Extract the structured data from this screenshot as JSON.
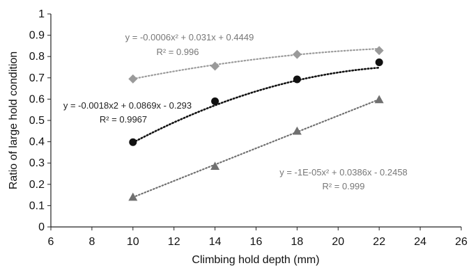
{
  "chart_data": {
    "type": "scatter",
    "xlabel": "Climbing hold depth (mm)",
    "ylabel": "Ratio of large hold condition",
    "xlim": [
      6,
      26
    ],
    "ylim": [
      0,
      1
    ],
    "xticks": [
      6,
      8,
      10,
      12,
      14,
      16,
      18,
      20,
      22,
      24,
      26
    ],
    "xtick_labels": [
      "6",
      "8",
      "10",
      "12",
      "14",
      "16",
      "18",
      "20",
      "22",
      "24",
      "26"
    ],
    "yticks": [
      0,
      0.1,
      0.2,
      0.3,
      0.4,
      0.5,
      0.6,
      0.7,
      0.8,
      0.9,
      1
    ],
    "ytick_labels": [
      "0",
      "0.1",
      "0.2",
      "0.3",
      "0.4",
      "0.5",
      "0.6",
      "0.7",
      "0.8",
      "0.9",
      "1"
    ],
    "grid": false,
    "trendline": "dotted polynomial",
    "series": [
      {
        "marker": "diamond",
        "color": "#9a9a9a",
        "x": [
          10,
          14,
          18,
          22
        ],
        "y": [
          0.695,
          0.755,
          0.81,
          0.828
        ],
        "fit": [
          -0.0006,
          0.031,
          0.4449
        ],
        "equation": "y = -0.0006x² + 0.031x + 0.4449",
        "r2": "R² = 0.996",
        "label_color": "#777777"
      },
      {
        "marker": "circle",
        "color": "#111111",
        "x": [
          10,
          14,
          18,
          22
        ],
        "y": [
          0.398,
          0.59,
          0.693,
          0.773
        ],
        "fit": [
          -0.0018,
          0.0869,
          -0.293
        ],
        "equation": "y = -0.0018x2 + 0.0869x - 0.293",
        "r2": "R² = 0.9967",
        "label_color": "#222222"
      },
      {
        "marker": "triangle",
        "color": "#707070",
        "x": [
          10,
          14,
          18,
          22
        ],
        "y": [
          0.14,
          0.285,
          0.45,
          0.598
        ],
        "fit": [
          -1e-05,
          0.0386,
          -0.2458
        ],
        "equation": "y = -1E-05x² + 0.0386x - 0.2458",
        "r2": "R² = 0.999",
        "label_color": "#777777"
      }
    ]
  }
}
